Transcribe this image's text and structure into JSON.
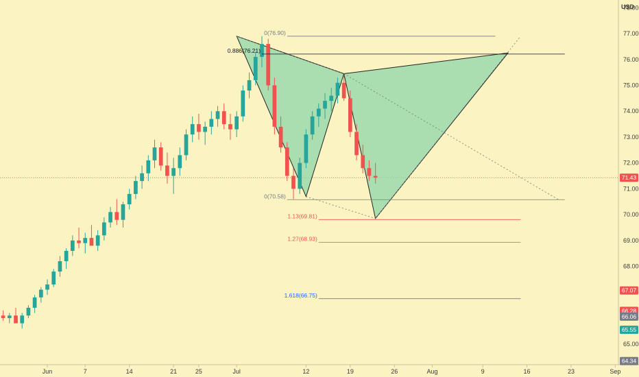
{
  "chart_data": {
    "type": "candlestick",
    "currency_label": "USD",
    "y_range": [
      64.2,
      78.3
    ],
    "x_range_days": [
      -0.5,
      97.5
    ],
    "y_ticks": [
      "65.00",
      "66.00",
      "67.00",
      "68.00",
      "69.00",
      "70.00",
      "71.00",
      "72.00",
      "73.00",
      "74.00",
      "75.00",
      "76.00",
      "77.00"
    ],
    "y_top_partial_label": "78.00",
    "x_ticks": [
      {
        "label": "Jun",
        "day": 7
      },
      {
        "label": "7",
        "day": 13
      },
      {
        "label": "14",
        "day": 20
      },
      {
        "label": "21",
        "day": 27
      },
      {
        "label": "25",
        "day": 31
      },
      {
        "label": "Jul",
        "day": 37
      },
      {
        "label": "12",
        "day": 48
      },
      {
        "label": "19",
        "day": 55
      },
      {
        "label": "26",
        "day": 62
      },
      {
        "label": "Aug",
        "day": 68
      },
      {
        "label": "9",
        "day": 76
      },
      {
        "label": "16",
        "day": 83
      },
      {
        "label": "23",
        "day": 90
      },
      {
        "label": "Sep",
        "day": 97
      }
    ],
    "price_badges": [
      {
        "label": "71.43",
        "value": 71.43,
        "color": "#ef5350"
      },
      {
        "label": "67.07",
        "value": 67.07,
        "color": "#ef5350"
      },
      {
        "label": "66.28",
        "value": 66.28,
        "color": "#ef5350"
      },
      {
        "label": "66.06",
        "value": 66.06,
        "color": "#787b86"
      },
      {
        "label": "65.55",
        "value": 65.55,
        "color": "#26a69a"
      },
      {
        "label": "64.34",
        "value": 64.34,
        "color": "#787b86"
      }
    ],
    "current_price": 71.43,
    "candles": [
      [
        66.1,
        66.3,
        65.9,
        66.0
      ],
      [
        66.0,
        66.2,
        65.8,
        66.1
      ],
      [
        66.1,
        66.4,
        65.9,
        65.8
      ],
      [
        65.8,
        66.2,
        65.6,
        66.1
      ],
      [
        66.1,
        66.5,
        66.0,
        66.4
      ],
      [
        66.4,
        66.9,
        66.2,
        66.8
      ],
      [
        66.8,
        67.2,
        66.6,
        67.1
      ],
      [
        67.1,
        67.5,
        66.9,
        67.3
      ],
      [
        67.3,
        67.9,
        67.2,
        67.8
      ],
      [
        67.8,
        68.4,
        67.6,
        68.2
      ],
      [
        68.2,
        68.7,
        67.9,
        68.6
      ],
      [
        68.6,
        69.2,
        68.4,
        69.0
      ],
      [
        69.0,
        69.5,
        68.7,
        68.9
      ],
      [
        68.9,
        69.3,
        68.5,
        69.1
      ],
      [
        69.1,
        69.6,
        68.8,
        68.8
      ],
      [
        68.8,
        69.4,
        68.6,
        69.2
      ],
      [
        69.2,
        69.9,
        69.0,
        69.7
      ],
      [
        69.7,
        70.3,
        69.5,
        70.1
      ],
      [
        70.1,
        70.6,
        69.6,
        69.8
      ],
      [
        69.8,
        70.5,
        69.5,
        70.4
      ],
      [
        70.4,
        71.0,
        70.2,
        70.8
      ],
      [
        70.8,
        71.5,
        70.6,
        71.3
      ],
      [
        71.3,
        71.9,
        71.0,
        71.6
      ],
      [
        71.6,
        72.3,
        71.3,
        72.1
      ],
      [
        72.1,
        72.9,
        71.8,
        72.6
      ],
      [
        72.6,
        72.8,
        71.7,
        71.9
      ],
      [
        71.9,
        72.4,
        71.2,
        71.5
      ],
      [
        71.5,
        72.2,
        70.8,
        71.8
      ],
      [
        71.8,
        72.6,
        71.5,
        72.3
      ],
      [
        72.3,
        73.3,
        72.1,
        73.1
      ],
      [
        73.1,
        73.8,
        72.8,
        73.5
      ],
      [
        73.5,
        73.9,
        72.9,
        73.2
      ],
      [
        73.2,
        73.6,
        72.7,
        73.4
      ],
      [
        73.4,
        74.0,
        73.1,
        73.7
      ],
      [
        73.7,
        74.2,
        73.4,
        74.0
      ],
      [
        74.0,
        74.3,
        73.3,
        73.5
      ],
      [
        73.5,
        73.9,
        72.9,
        73.3
      ],
      [
        73.3,
        74.0,
        73.0,
        73.8
      ],
      [
        73.8,
        75.0,
        73.6,
        74.8
      ],
      [
        74.8,
        75.5,
        74.5,
        75.2
      ],
      [
        75.2,
        76.3,
        75.0,
        76.1
      ],
      [
        76.1,
        76.9,
        75.7,
        76.6
      ],
      [
        76.6,
        76.8,
        74.8,
        75.0
      ],
      [
        75.0,
        75.3,
        73.1,
        73.4
      ],
      [
        73.4,
        73.8,
        72.4,
        72.6
      ],
      [
        72.6,
        72.8,
        71.3,
        71.5
      ],
      [
        71.5,
        71.8,
        70.6,
        71.0
      ],
      [
        71.0,
        72.2,
        70.8,
        72.0
      ],
      [
        72.0,
        73.3,
        71.8,
        73.1
      ],
      [
        73.1,
        74.0,
        72.9,
        73.8
      ],
      [
        73.8,
        74.3,
        73.4,
        74.1
      ],
      [
        74.1,
        74.7,
        73.7,
        74.4
      ],
      [
        74.4,
        74.9,
        74.0,
        74.6
      ],
      [
        74.6,
        75.3,
        74.3,
        75.1
      ],
      [
        75.1,
        75.4,
        74.4,
        74.5
      ],
      [
        74.5,
        74.8,
        73.0,
        73.2
      ],
      [
        73.2,
        73.5,
        72.1,
        72.3
      ],
      [
        72.3,
        72.7,
        71.6,
        71.8
      ],
      [
        71.8,
        72.1,
        71.3,
        71.5
      ],
      [
        71.5,
        72.0,
        71.2,
        71.43
      ]
    ],
    "harmonic_pattern": {
      "name": "bearish-cypher",
      "points": [
        {
          "day": 37,
          "price": 76.9
        },
        {
          "day": 48,
          "price": 70.7
        },
        {
          "day": 54,
          "price": 75.45
        },
        {
          "day": 59,
          "price": 69.85
        },
        {
          "day": 80,
          "price": 76.25
        }
      ],
      "fill_color": "#8fd6a9"
    },
    "fib_levels": [
      {
        "label": "0(76.90)",
        "value": 76.9,
        "color": "#787b86"
      },
      {
        "label": "0.886(76.21)",
        "value": 76.21,
        "color": "#131722"
      },
      {
        "label": "0(70.58)",
        "value": 70.58,
        "color": "#787b86"
      },
      {
        "label": "1.13(69.81)",
        "value": 69.81,
        "color": "#ef5350"
      },
      {
        "label": "1.27(68.93)",
        "value": 68.93,
        "color": "#ef5350"
      },
      {
        "label": "1.618(66.75)",
        "value": 66.75,
        "color": "#2962ff"
      }
    ]
  }
}
